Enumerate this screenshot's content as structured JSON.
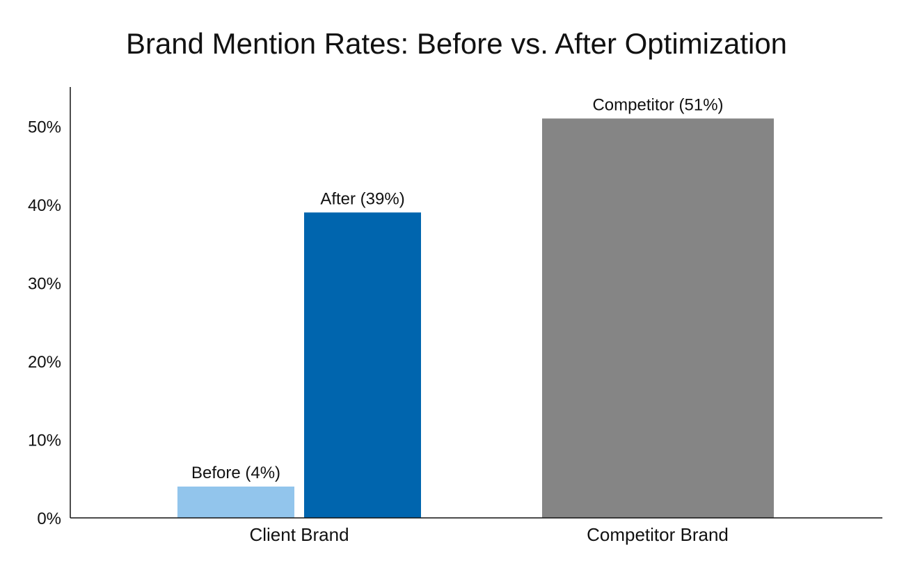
{
  "chart_data": {
    "type": "bar",
    "title": "Brand Mention Rates: Before vs. After Optimization",
    "xlabel": "",
    "ylabel": "",
    "ylim": [
      0,
      55
    ],
    "yticks": [
      0,
      10,
      20,
      30,
      40,
      50
    ],
    "ytick_labels": [
      "0%",
      "10%",
      "20%",
      "30%",
      "40%",
      "50%"
    ],
    "grid": false,
    "legend": "none",
    "categories": [
      "Client Brand",
      "Competitor Brand"
    ],
    "bars": [
      {
        "category": "Client Brand",
        "value": 4,
        "label": "Before (4%)",
        "color": "#92c5ec"
      },
      {
        "category": "Client Brand",
        "value": 39,
        "label": "After (39%)",
        "color": "#0065ae"
      },
      {
        "category": "Competitor Brand",
        "value": 51,
        "label": "Competitor (51%)",
        "color": "#858585"
      }
    ]
  }
}
